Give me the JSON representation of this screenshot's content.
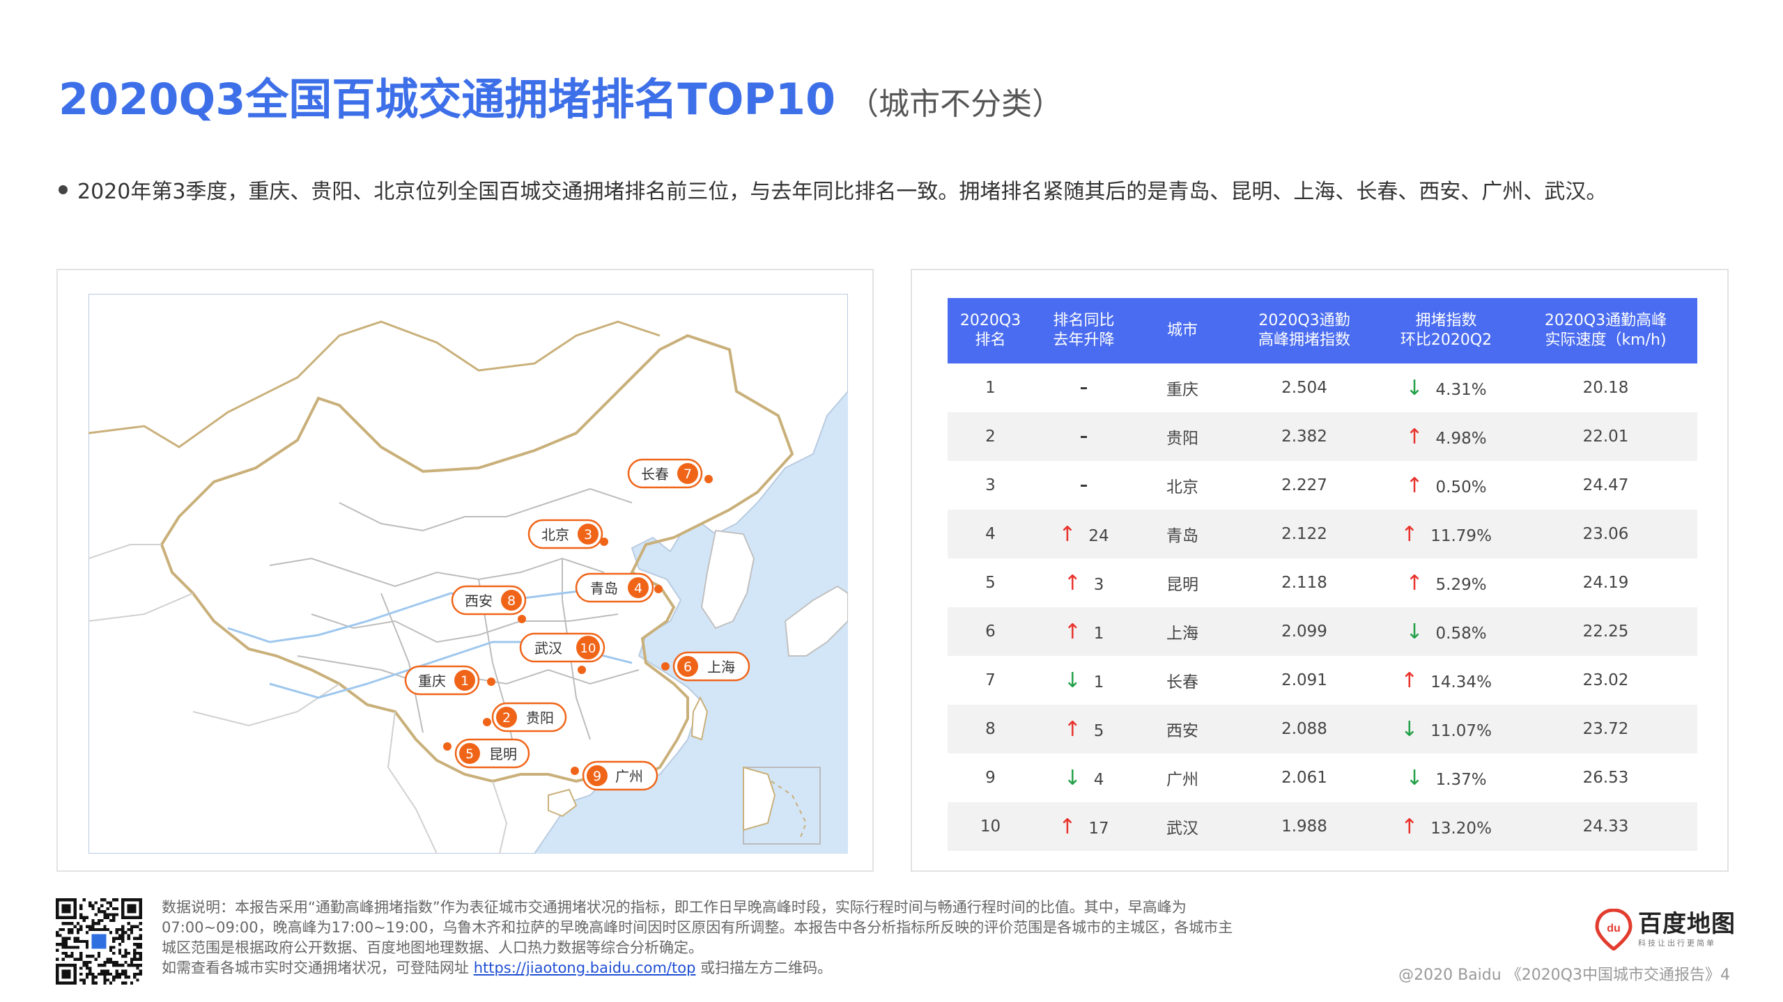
{
  "title": {
    "main": "2020Q3全国百城交通拥堵排名TOP10",
    "sub": "（城市不分类）"
  },
  "summary": "2020年第3季度，重庆、贵阳、北京位列全国百城交通拥堵排名前三位，与去年同比排名一致。拥堵排名紧随其后的是青岛、昆明、上海、长春、西安、广州、武汉。",
  "map": {
    "markers": [
      {
        "name": "重庆",
        "rank": "1"
      },
      {
        "name": "贵阳",
        "rank": "2"
      },
      {
        "name": "北京",
        "rank": "3"
      },
      {
        "name": "青岛",
        "rank": "4"
      },
      {
        "name": "昆明",
        "rank": "5"
      },
      {
        "name": "上海",
        "rank": "6"
      },
      {
        "name": "长春",
        "rank": "7"
      },
      {
        "name": "西安",
        "rank": "8"
      },
      {
        "name": "广州",
        "rank": "9"
      },
      {
        "name": "武汉",
        "rank": "10"
      }
    ],
    "colors": {
      "land": "#ffffff",
      "sea": "#d3e6f8",
      "border": "#c9b07a",
      "province": "#bcbcbc",
      "river": "#9ec7ee",
      "marker": "#f06418"
    }
  },
  "table": {
    "headers": [
      {
        "line1": "2020Q3",
        "line2": "排名"
      },
      {
        "line1": "排名同比",
        "line2": "去年升降"
      },
      {
        "line1": "城市",
        "line2": ""
      },
      {
        "line1": "2020Q3通勤",
        "line2": "高峰拥堵指数"
      },
      {
        "line1": "拥堵指数",
        "line2": "环比2020Q2"
      },
      {
        "line1": "2020Q3通勤高峰",
        "line2": "实际速度（km/h)"
      }
    ],
    "rows": [
      {
        "rank": "1",
        "yoy_dir": "none",
        "yoy_arrow": "",
        "yoy": "–",
        "city": "重庆",
        "index": "2.504",
        "qoq_dir": "down",
        "qoq_arrow": "↓",
        "qoq": "4.31%",
        "speed": "20.18"
      },
      {
        "rank": "2",
        "yoy_dir": "none",
        "yoy_arrow": "",
        "yoy": "–",
        "city": "贵阳",
        "index": "2.382",
        "qoq_dir": "up",
        "qoq_arrow": "↑",
        "qoq": "4.98%",
        "speed": "22.01"
      },
      {
        "rank": "3",
        "yoy_dir": "none",
        "yoy_arrow": "",
        "yoy": "–",
        "city": "北京",
        "index": "2.227",
        "qoq_dir": "up",
        "qoq_arrow": "↑",
        "qoq": "0.50%",
        "speed": "24.47"
      },
      {
        "rank": "4",
        "yoy_dir": "up",
        "yoy_arrow": "↑",
        "yoy": "24",
        "city": "青岛",
        "index": "2.122",
        "qoq_dir": "up",
        "qoq_arrow": "↑",
        "qoq": "11.79%",
        "speed": "23.06"
      },
      {
        "rank": "5",
        "yoy_dir": "up",
        "yoy_arrow": "↑",
        "yoy": "3",
        "city": "昆明",
        "index": "2.118",
        "qoq_dir": "up",
        "qoq_arrow": "↑",
        "qoq": "5.29%",
        "speed": "24.19"
      },
      {
        "rank": "6",
        "yoy_dir": "up",
        "yoy_arrow": "↑",
        "yoy": "1",
        "city": "上海",
        "index": "2.099",
        "qoq_dir": "down",
        "qoq_arrow": "↓",
        "qoq": "0.58%",
        "speed": "22.25"
      },
      {
        "rank": "7",
        "yoy_dir": "down",
        "yoy_arrow": "↓",
        "yoy": "1",
        "city": "长春",
        "index": "2.091",
        "qoq_dir": "up",
        "qoq_arrow": "↑",
        "qoq": "14.34%",
        "speed": "23.02"
      },
      {
        "rank": "8",
        "yoy_dir": "up",
        "yoy_arrow": "↑",
        "yoy": "5",
        "city": "西安",
        "index": "2.088",
        "qoq_dir": "down",
        "qoq_arrow": "↓",
        "qoq": "11.07%",
        "speed": "23.72"
      },
      {
        "rank": "9",
        "yoy_dir": "down",
        "yoy_arrow": "↓",
        "yoy": "4",
        "city": "广州",
        "index": "2.061",
        "qoq_dir": "down",
        "qoq_arrow": "↓",
        "qoq": "1.37%",
        "speed": "26.53"
      },
      {
        "rank": "10",
        "yoy_dir": "up",
        "yoy_arrow": "↑",
        "yoy": "17",
        "city": "武汉",
        "index": "1.988",
        "qoq_dir": "up",
        "qoq_arrow": "↑",
        "qoq": "13.20%",
        "speed": "24.33"
      }
    ],
    "colors": {
      "header": "#4a6cf0",
      "up": "#e8322b",
      "down": "#22a047",
      "stripe": "#f2f2f2"
    }
  },
  "footnote": {
    "text1": "数据说明：本报告采用“通勤高峰拥堵指数”作为表征城市交通拥堵状况的指标，即工作日早晚高峰时段，实际行程时间与畅通行程时间的比值。其中，早高峰为07:00~09:00，晚高峰为17:00~19:00，乌鲁木齐和拉萨的早晚高峰时间因时区原因有所调整。本报告中各分析指标所反映的评价范围是各城市的主城区，各城市主城区范围是根据政府公开数据、百度地图地理数据、人口热力数据等综合分析确定。",
    "text2_prefix": "如需查看各城市实时交通拥堵状况，可登陆网址 ",
    "link": "https://jiaotong.baidu.com/top",
    "text2_suffix": " 或扫描左方二维码。"
  },
  "logo": {
    "mark": "du",
    "name": "百度地图",
    "slogan": "科技让出行更简单"
  },
  "copyright": "@2020 Baidu 《2020Q3中国城市交通报告》4",
  "qr_icon": "qr-code"
}
